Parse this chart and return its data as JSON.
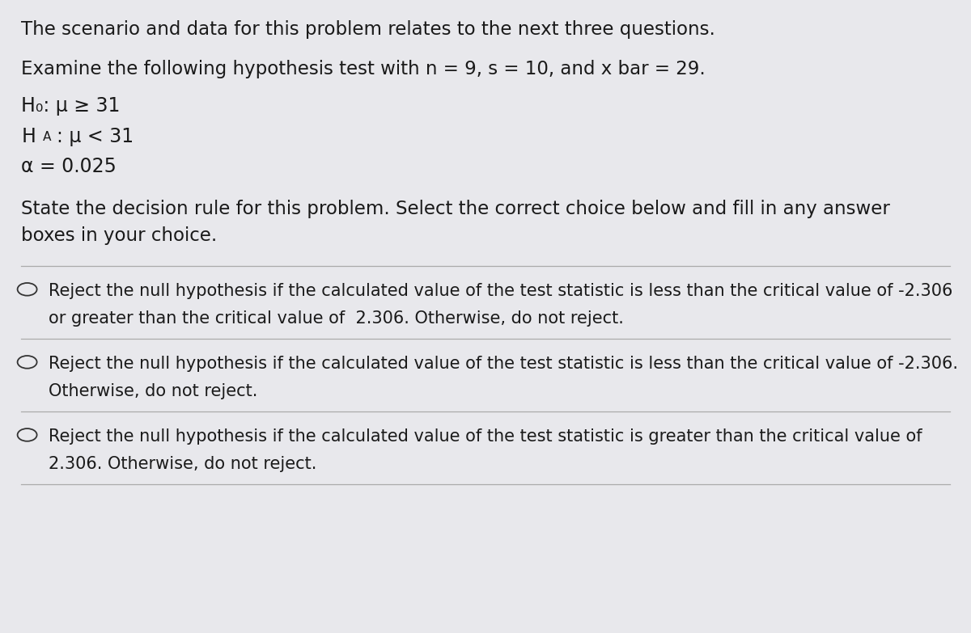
{
  "bg_color": "#e8e8ec",
  "text_color": "#1a1a1a",
  "title_line": "The scenario and data for this problem relates to the next three questions.",
  "intro_line": "Examine the following hypothesis test with n = 9, s = 10, and x bar = 29.",
  "h0_line": "H₀: μ ≥ 31",
  "ha_line": "H⁁: μ < 31",
  "alpha_line": "α = 0.025",
  "question_line1": "State the decision rule for this problem. Select the correct choice below and fill in any answer",
  "question_line2": "boxes in your choice.",
  "option1_line1": "Reject the null hypothesis if the calculated value of the test statistic is less than the critical value of -2.306",
  "option1_line2": "or greater than the critical value of  2.306. Otherwise, do not reject.",
  "option2_line1": "Reject the null hypothesis if the calculated value of the test statistic is less than the critical value of -2.306.",
  "option2_line2": "Otherwise, do not reject.",
  "option3_line1": "Reject the null hypothesis if the calculated value of the test statistic is greater than the critical value of",
  "option3_line2": "2.306. Otherwise, do not reject.",
  "font_size_main": 16.5,
  "font_size_options": 15.0,
  "font_size_h": 17.0,
  "divider_color": "#aaaaaa",
  "circle_color": "#333333"
}
